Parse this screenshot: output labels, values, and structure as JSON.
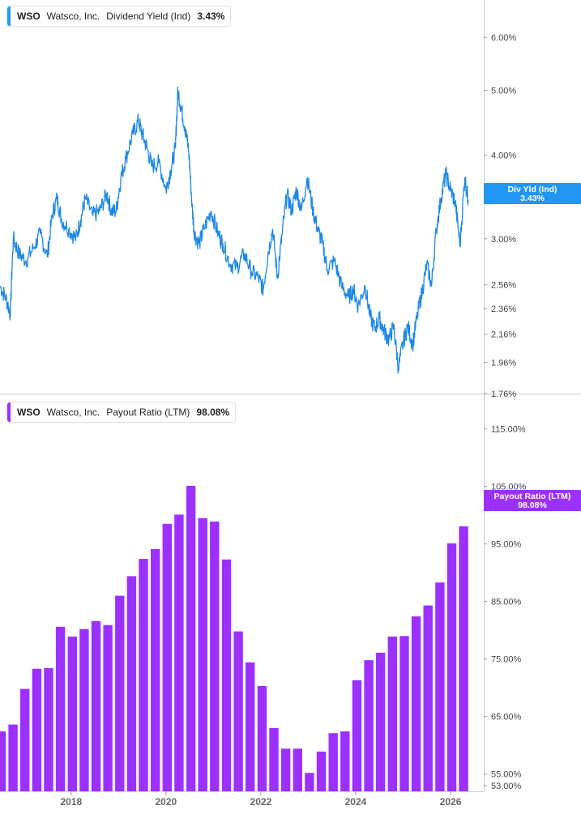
{
  "colors": {
    "yield_line": "#1e88e5",
    "yield_tag": "#2196f3",
    "payout_bar": "#9b30ff",
    "payout_tag": "#9b30ff",
    "grid": "#e6e6e6",
    "axis_line": "#cfcfcf"
  },
  "legend_top": {
    "ticker": "WSO",
    "company": "Watsco, Inc.",
    "metric": "Dividend Yield (Ind)",
    "value": "3.43%"
  },
  "legend_bottom": {
    "ticker": "WSO",
    "company": "Watsco, Inc.",
    "metric": "Payout Ratio (LTM)",
    "value": "98.08%"
  },
  "tags": {
    "top_label": "Div Yld (Ind)",
    "top_value": "3.43%",
    "bottom_label": "Payout Ratio (LTM)",
    "bottom_value": "98.08%"
  },
  "chart_data": [
    {
      "type": "line",
      "name": "Dividend Yield (Ind)",
      "scale": "log",
      "ylim": [
        1.76,
        6.6
      ],
      "xlim": [
        2016.5,
        2026.7
      ],
      "yticks": [
        "6.00%",
        "5.00%",
        "4.00%",
        "3.00%",
        "2.56%",
        "2.36%",
        "2.16%",
        "1.96%",
        "1.76%"
      ],
      "ytick_values": [
        6.0,
        5.0,
        4.0,
        3.0,
        2.56,
        2.36,
        2.16,
        1.96,
        1.76
      ],
      "points": [
        [
          2016.5,
          2.55
        ],
        [
          2016.62,
          2.45
        ],
        [
          2016.72,
          2.32
        ],
        [
          2016.78,
          3.0
        ],
        [
          2016.9,
          2.85
        ],
        [
          2017.05,
          2.78
        ],
        [
          2017.2,
          2.9
        ],
        [
          2017.35,
          3.05
        ],
        [
          2017.5,
          2.82
        ],
        [
          2017.6,
          3.25
        ],
        [
          2017.7,
          3.45
        ],
        [
          2017.8,
          3.2
        ],
        [
          2017.95,
          3.1
        ],
        [
          2018.1,
          3.0
        ],
        [
          2018.2,
          3.2
        ],
        [
          2018.3,
          3.45
        ],
        [
          2018.45,
          3.25
        ],
        [
          2018.6,
          3.3
        ],
        [
          2018.75,
          3.5
        ],
        [
          2018.85,
          3.3
        ],
        [
          2018.95,
          3.3
        ],
        [
          2019.05,
          3.7
        ],
        [
          2019.15,
          3.95
        ],
        [
          2019.3,
          4.3
        ],
        [
          2019.42,
          4.5
        ],
        [
          2019.5,
          4.3
        ],
        [
          2019.6,
          4.1
        ],
        [
          2019.7,
          3.85
        ],
        [
          2019.85,
          3.9
        ],
        [
          2020.0,
          3.55
        ],
        [
          2020.1,
          3.8
        ],
        [
          2020.2,
          4.1
        ],
        [
          2020.25,
          5.0
        ],
        [
          2020.32,
          4.7
        ],
        [
          2020.4,
          4.4
        ],
        [
          2020.48,
          4.05
        ],
        [
          2020.55,
          3.35
        ],
        [
          2020.6,
          3.05
        ],
        [
          2020.7,
          2.95
        ],
        [
          2020.8,
          3.1
        ],
        [
          2020.95,
          3.3
        ],
        [
          2021.1,
          3.05
        ],
        [
          2021.2,
          2.95
        ],
        [
          2021.35,
          2.75
        ],
        [
          2021.5,
          2.72
        ],
        [
          2021.65,
          2.85
        ],
        [
          2021.8,
          2.68
        ],
        [
          2021.95,
          2.62
        ],
        [
          2022.05,
          2.52
        ],
        [
          2022.15,
          2.85
        ],
        [
          2022.25,
          3.1
        ],
        [
          2022.35,
          2.62
        ],
        [
          2022.45,
          3.05
        ],
        [
          2022.55,
          3.5
        ],
        [
          2022.65,
          3.3
        ],
        [
          2022.75,
          3.55
        ],
        [
          2022.85,
          3.3
        ],
        [
          2022.98,
          3.7
        ],
        [
          2023.1,
          3.3
        ],
        [
          2023.2,
          3.1
        ],
        [
          2023.3,
          2.95
        ],
        [
          2023.4,
          2.7
        ],
        [
          2023.55,
          2.78
        ],
        [
          2023.7,
          2.55
        ],
        [
          2023.85,
          2.45
        ],
        [
          2023.95,
          2.52
        ],
        [
          2024.05,
          2.38
        ],
        [
          2024.2,
          2.55
        ],
        [
          2024.3,
          2.3
        ],
        [
          2024.4,
          2.2
        ],
        [
          2024.5,
          2.28
        ],
        [
          2024.6,
          2.18
        ],
        [
          2024.7,
          2.12
        ],
        [
          2024.8,
          2.22
        ],
        [
          2024.9,
          1.92
        ],
        [
          2025.0,
          2.1
        ],
        [
          2025.1,
          2.22
        ],
        [
          2025.2,
          2.08
        ],
        [
          2025.3,
          2.3
        ],
        [
          2025.4,
          2.5
        ],
        [
          2025.5,
          2.75
        ],
        [
          2025.6,
          2.55
        ],
        [
          2025.7,
          3.1
        ],
        [
          2025.8,
          3.45
        ],
        [
          2025.9,
          3.75
        ],
        [
          2026.0,
          3.55
        ],
        [
          2026.1,
          3.4
        ],
        [
          2026.2,
          2.92
        ],
        [
          2026.3,
          3.7
        ],
        [
          2026.37,
          3.43
        ]
      ]
    },
    {
      "type": "bar",
      "name": "Payout Ratio (LTM)",
      "scale": "linear",
      "ylim": [
        52,
        121
      ],
      "yticks": [
        "115.00%",
        "105.00%",
        "95.00%",
        "85.00%",
        "75.00%",
        "65.00%",
        "55.00%",
        "53.00%"
      ],
      "ytick_values": [
        115,
        105,
        95,
        85,
        75,
        65,
        55,
        53
      ],
      "xticks": [
        "2018",
        "2020",
        "2022",
        "2024",
        "2026"
      ],
      "xtick_values": [
        2018,
        2020,
        2022,
        2024,
        2026
      ],
      "x": [
        2016.5,
        2016.75,
        2017.0,
        2017.25,
        2017.5,
        2017.75,
        2018.0,
        2018.25,
        2018.5,
        2018.75,
        2019.0,
        2019.25,
        2019.5,
        2019.75,
        2020.0,
        2020.25,
        2020.5,
        2020.75,
        2021.0,
        2021.25,
        2021.5,
        2021.75,
        2022.0,
        2022.25,
        2022.5,
        2022.75,
        2023.0,
        2023.25,
        2023.5,
        2023.75,
        2024.0,
        2024.25,
        2024.5,
        2024.75,
        2025.0,
        2025.25,
        2025.5,
        2025.75,
        2026.0,
        2026.25
      ],
      "values": [
        62.4,
        63.6,
        69.8,
        73.3,
        73.4,
        80.6,
        78.9,
        80.2,
        81.6,
        80.9,
        86.0,
        89.4,
        92.4,
        94.1,
        98.5,
        100.1,
        105.1,
        99.5,
        98.9,
        92.3,
        79.8,
        74.4,
        70.3,
        63.0,
        59.4,
        59.4,
        55.2,
        58.9,
        62.1,
        62.4,
        71.3,
        74.8,
        76.1,
        78.9,
        79.0,
        82.4,
        84.3,
        88.3,
        95.1,
        98.08
      ]
    }
  ]
}
